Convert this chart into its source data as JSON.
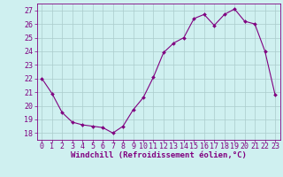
{
  "x": [
    0,
    1,
    2,
    3,
    4,
    5,
    6,
    7,
    8,
    9,
    10,
    11,
    12,
    13,
    14,
    15,
    16,
    17,
    18,
    19,
    20,
    21,
    22,
    23
  ],
  "y": [
    22.0,
    20.9,
    19.5,
    18.8,
    18.6,
    18.5,
    18.4,
    18.0,
    18.5,
    19.7,
    20.6,
    22.1,
    23.9,
    24.6,
    25.0,
    26.4,
    26.7,
    25.9,
    26.7,
    27.1,
    26.2,
    26.0,
    24.0,
    20.8
  ],
  "line_color": "#800080",
  "marker": "D",
  "marker_size": 2.0,
  "bg_color": "#cff0f0",
  "grid_color": "#aacccc",
  "xlabel": "Windchill (Refroidissement éolien,°C)",
  "tick_color": "#800080",
  "ylim": [
    17.5,
    27.5
  ],
  "yticks": [
    18,
    19,
    20,
    21,
    22,
    23,
    24,
    25,
    26,
    27
  ],
  "xlim": [
    -0.5,
    23.5
  ],
  "xticks": [
    0,
    1,
    2,
    3,
    4,
    5,
    6,
    7,
    8,
    9,
    10,
    11,
    12,
    13,
    14,
    15,
    16,
    17,
    18,
    19,
    20,
    21,
    22,
    23
  ],
  "spine_color": "#800080",
  "font_size_label": 6.5,
  "font_size_tick": 6.0
}
